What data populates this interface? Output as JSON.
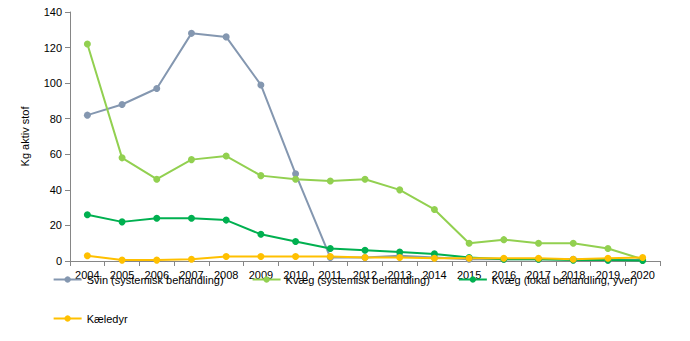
{
  "chart_data": {
    "type": "line",
    "y_label": "Kg aktiv stof",
    "categories": [
      "2004",
      "2005",
      "2006",
      "2007",
      "2008",
      "2009",
      "2010",
      "2011",
      "2012",
      "2013",
      "2014",
      "2015",
      "2016",
      "2017",
      "2018",
      "2019",
      "2020"
    ],
    "series": [
      {
        "name": "Svin (systemisk behandling)",
        "color": "#8497b0",
        "values": [
          82,
          88,
          97,
          128,
          126,
          99,
          49,
          2,
          2,
          3,
          2,
          1,
          1,
          1,
          1,
          0.5,
          0.5
        ]
      },
      {
        "name": "Kvæg (systemisk behandling)",
        "color": "#92d050",
        "values": [
          122,
          58,
          46,
          57,
          59,
          48,
          46,
          45,
          46,
          40,
          29,
          10,
          12,
          10,
          10,
          7,
          1
        ]
      },
      {
        "name": "Kvæg (lokal behandling, yver)",
        "color": "#00b050",
        "values": [
          26,
          22,
          24,
          24,
          23,
          15,
          11,
          7,
          6,
          5,
          4,
          2,
          1,
          1,
          0.5,
          0.5,
          0.3
        ]
      },
      {
        "name": "Kæledyr",
        "color": "#ffc000",
        "values": [
          3,
          0.5,
          0.5,
          1,
          2.5,
          2.5,
          2.5,
          2.5,
          2,
          2,
          1.5,
          1.5,
          1.5,
          1.5,
          1,
          1.5,
          2
        ]
      }
    ],
    "ylim": [
      0,
      140
    ],
    "yticks": [
      0,
      20,
      40,
      60,
      80,
      100,
      120,
      140
    ],
    "grid": false,
    "legend": "bottom",
    "marker": "circle"
  }
}
